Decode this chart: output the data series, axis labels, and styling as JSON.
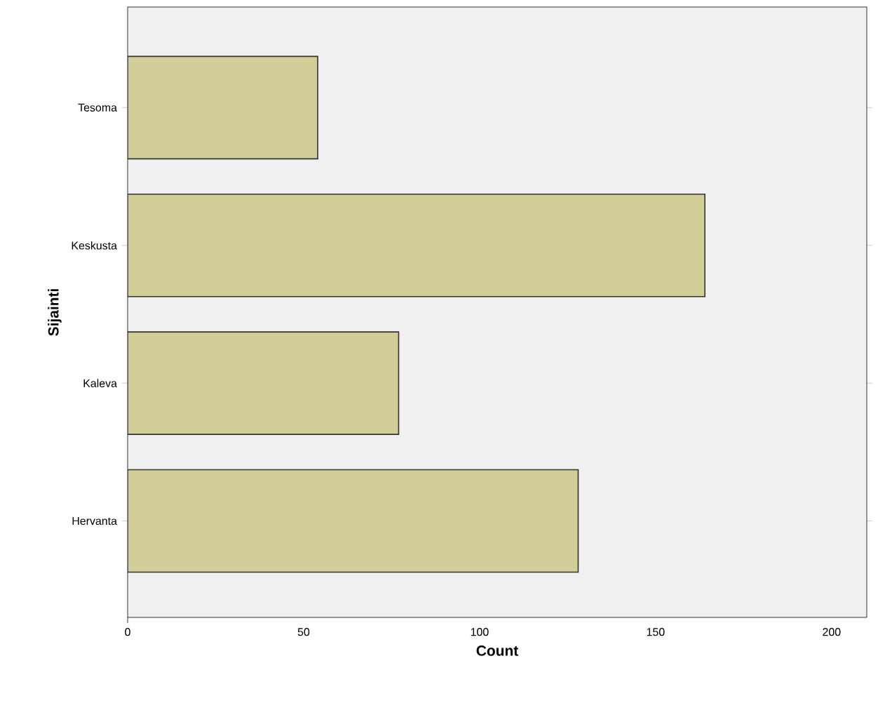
{
  "chart_data": {
    "type": "bar",
    "orientation": "horizontal",
    "xlabel": "Count",
    "ylabel": "Sijainti",
    "categories": [
      "Tesoma",
      "Keskusta",
      "Kaleva",
      "Hervanta"
    ],
    "values": [
      54,
      164,
      77,
      128
    ],
    "color": "#d3ce97",
    "xlim": [
      0,
      210
    ],
    "xticks": [
      0,
      50,
      100,
      150,
      200
    ]
  }
}
